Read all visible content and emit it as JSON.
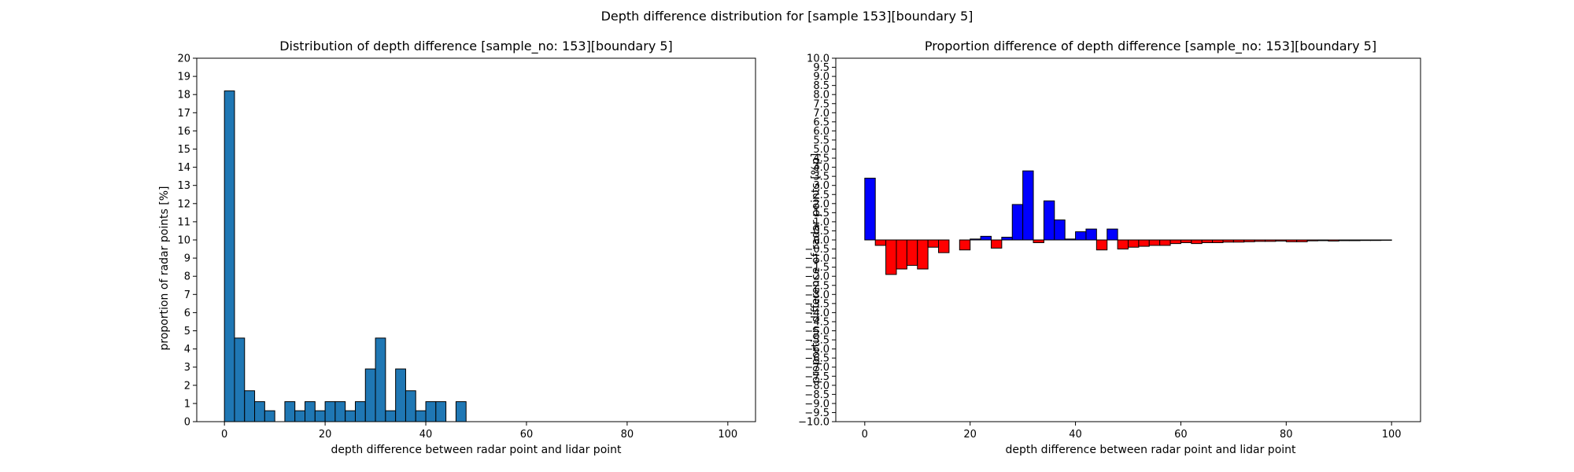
{
  "figure": {
    "suptitle": "Depth difference distribution for [sample 153][boundary 5]"
  },
  "chart_data": [
    {
      "type": "bar",
      "title": "Distribution of depth difference [sample_no: 153][boundary 5]",
      "xlabel": "depth difference between radar point and lidar point",
      "ylabel": "proportion of radar points [%]",
      "xlim": [
        -5.5,
        105.5
      ],
      "ylim": [
        0,
        20
      ],
      "xticks": [
        0,
        20,
        40,
        60,
        80,
        100
      ],
      "yticks": [
        0,
        1,
        2,
        3,
        4,
        5,
        6,
        7,
        8,
        9,
        10,
        11,
        12,
        13,
        14,
        15,
        16,
        17,
        18,
        19,
        20
      ],
      "bin_width": 2,
      "bar_color": "#1f77b4",
      "edge_color": "#000000",
      "x": [
        0,
        2,
        4,
        6,
        8,
        10,
        12,
        14,
        16,
        18,
        20,
        22,
        24,
        26,
        28,
        30,
        32,
        34,
        36,
        38,
        40,
        42,
        44,
        46
      ],
      "values": [
        18.2,
        4.6,
        1.7,
        1.1,
        0.6,
        0,
        1.1,
        0.6,
        1.1,
        0.6,
        1.1,
        1.1,
        0.6,
        1.1,
        2.9,
        4.6,
        0.6,
        2.9,
        1.7,
        0.6,
        1.1,
        1.1,
        0,
        1.1
      ]
    },
    {
      "type": "bar",
      "title": "Proportion difference of depth difference [sample_no: 153][boundary 5]",
      "xlabel": "depth difference between radar point and lidar point",
      "ylabel": "proportion difference of radar points [%p]",
      "xlim": [
        -5.5,
        105.5
      ],
      "ylim": [
        -10,
        10
      ],
      "xticks": [
        0,
        20,
        40,
        60,
        80,
        100
      ],
      "yticks": [
        -10.0,
        -9.5,
        -9.0,
        -8.5,
        -8.0,
        -7.5,
        -7.0,
        -6.5,
        -6.0,
        -5.5,
        -5.0,
        -4.5,
        -4.0,
        -3.5,
        -3.0,
        -2.5,
        -2.0,
        -1.5,
        -1.0,
        -0.5,
        0.0,
        0.5,
        1.0,
        1.5,
        2.0,
        2.5,
        3.0,
        3.5,
        4.0,
        4.5,
        5.0,
        5.5,
        6.0,
        6.5,
        7.0,
        7.5,
        8.0,
        8.5,
        9.0,
        9.5,
        10.0
      ],
      "bin_width": 2,
      "positive_color": "#0000ff",
      "negative_color": "#ff0000",
      "edge_color": "#000000",
      "x": [
        0,
        2,
        4,
        6,
        8,
        10,
        12,
        14,
        16,
        18,
        20,
        22,
        24,
        26,
        28,
        30,
        32,
        34,
        36,
        38,
        40,
        42,
        44,
        46,
        48,
        50,
        52,
        54,
        56,
        58,
        60,
        62,
        64,
        66,
        68,
        70,
        72,
        74,
        76,
        78,
        80,
        82,
        84,
        86,
        88,
        90,
        92,
        94,
        96,
        98
      ],
      "values": [
        3.4,
        -0.3,
        -1.9,
        -1.6,
        -1.4,
        -1.6,
        -0.4,
        -0.7,
        0,
        -0.55,
        0.05,
        0.2,
        -0.45,
        0.15,
        1.95,
        3.8,
        -0.15,
        2.15,
        1.1,
        0.05,
        0.45,
        0.6,
        -0.55,
        0.6,
        -0.5,
        -0.4,
        -0.35,
        -0.3,
        -0.3,
        -0.2,
        -0.15,
        -0.2,
        -0.15,
        -0.15,
        -0.12,
        -0.12,
        -0.1,
        -0.08,
        -0.08,
        -0.06,
        -0.1,
        -0.1,
        -0.05,
        -0.04,
        -0.06,
        -0.04,
        -0.04,
        -0.03,
        -0.03,
        -0.02
      ]
    }
  ]
}
